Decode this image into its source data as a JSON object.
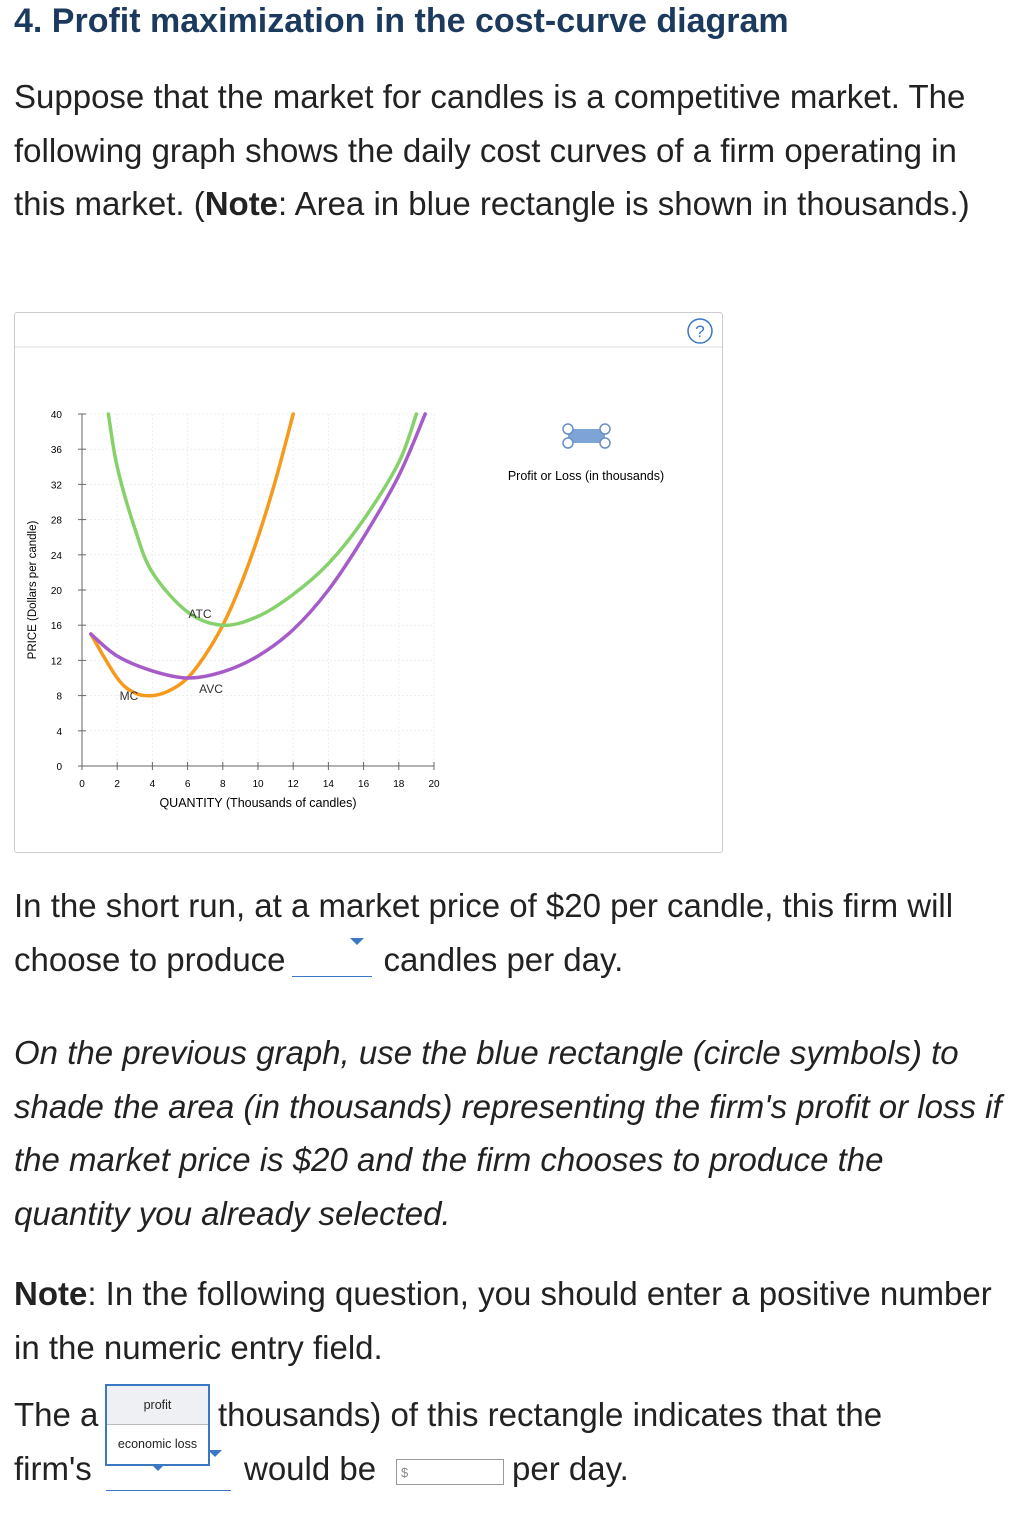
{
  "title": "4. Profit maximization in the cost-curve diagram",
  "intro": [
    "Suppose that the market for candles is a competitive market. The following graph shows the daily cost curves of a firm operating in this market. (",
    "Note",
    ": Area in blue rectangle is shown in thousands.)"
  ],
  "help": "?",
  "chart_data": {
    "type": "line",
    "x_label": "QUANTITY (Thousands of candles)",
    "y_label": "PRICE (Dollars per candle)",
    "xlim": [
      0,
      20
    ],
    "ylim": [
      0,
      40
    ],
    "xticks": [
      0,
      2,
      4,
      6,
      8,
      10,
      12,
      14,
      16,
      18,
      20
    ],
    "yticks": [
      0,
      4,
      8,
      12,
      16,
      20,
      24,
      28,
      32,
      36,
      40
    ],
    "grid": true,
    "tool_label": "Profit or Loss (in thousands)",
    "series": [
      {
        "name": "MC",
        "color": "#f59a1c",
        "x": [
          0.5,
          2,
          3,
          4,
          5,
          6,
          7,
          8,
          9,
          10,
          11,
          12
        ],
        "values": [
          15,
          10,
          8.3,
          8,
          8.6,
          10,
          12.6,
          16,
          20.5,
          26,
          32.5,
          40
        ]
      },
      {
        "name": "ATC",
        "color": "#86d16b",
        "x": [
          1.5,
          2,
          3,
          4,
          6,
          8,
          10,
          12,
          14,
          16,
          18,
          19
        ],
        "values": [
          40,
          34,
          27,
          22,
          17.5,
          16,
          17,
          19.5,
          23,
          28,
          34.5,
          40
        ]
      },
      {
        "name": "AVC",
        "color": "#a55cc9",
        "x": [
          0.5,
          2,
          4,
          6,
          8,
          10,
          12,
          14,
          16,
          18,
          19.5
        ],
        "values": [
          15,
          12.5,
          10.8,
          10,
          10.7,
          12.5,
          15.5,
          20,
          26,
          33,
          40
        ]
      }
    ]
  },
  "question1": [
    "In the short run, at a market price of $20 per candle, this firm will choose to produce",
    "candles per day."
  ],
  "instruction": "On the previous graph, use the blue rectangle (circle symbols) to shade the area (in thousands) representing the firm's profit or loss if the market price is $20 and the firm chooses to produce the quantity you already selected.",
  "note": [
    "Note",
    ": In the following question, you should enter a positive number in the numeric entry field."
  ],
  "question2": {
    "parts": [
      "The a",
      "thousands) of this rectangle indicates that the",
      "firm's",
      "would be",
      "per day."
    ],
    "dropdown_options": [
      "profit",
      "economic loss"
    ],
    "currency": "$"
  }
}
